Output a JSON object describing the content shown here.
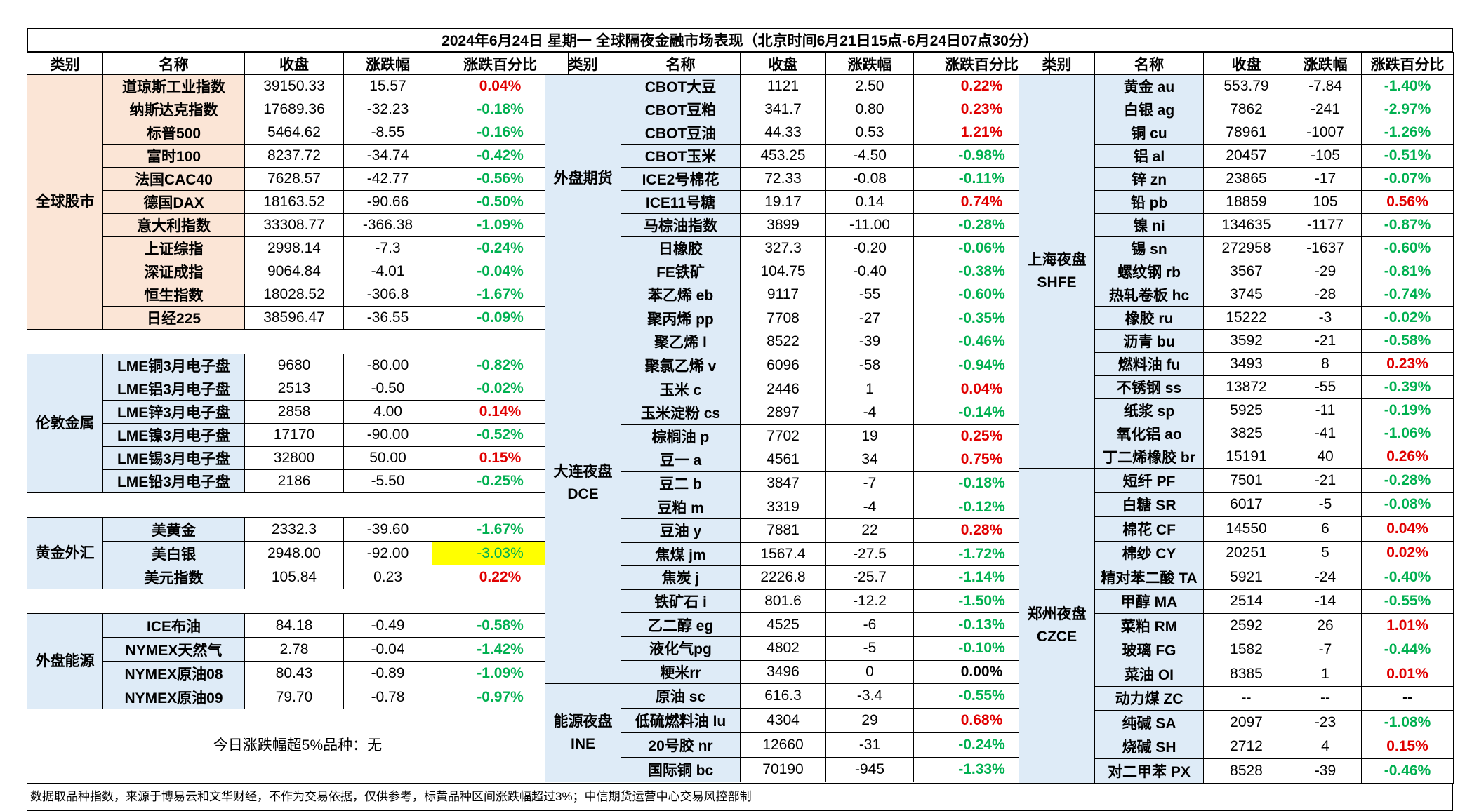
{
  "title": "2024年6月24日 星期一 全球隔夜金融市场表现（北京时间6月21日15点-6月24日07点30分）",
  "headers": [
    "类别",
    "名称",
    "收盘",
    "涨跌幅",
    "涨跌百分比"
  ],
  "colors": {
    "up": "#E00000",
    "down": "#00B050",
    "highlight": "#FFFF00",
    "category_orange": "#FBE5D6",
    "category_blue": "#DEEBF7"
  },
  "left": {
    "groups": [
      {
        "category": "全球股市",
        "rows": [
          {
            "name": "道琼斯工业指数",
            "close": "39150.33",
            "change": "15.57",
            "pct": "0.04%"
          },
          {
            "name": "纳斯达克指数",
            "close": "17689.36",
            "change": "-32.23",
            "pct": "-0.18%"
          },
          {
            "name": "标普500",
            "close": "5464.62",
            "change": "-8.55",
            "pct": "-0.16%"
          },
          {
            "name": "富时100",
            "close": "8237.72",
            "change": "-34.74",
            "pct": "-0.42%"
          },
          {
            "name": "法国CAC40",
            "close": "7628.57",
            "change": "-42.77",
            "pct": "-0.56%"
          },
          {
            "name": "德国DAX",
            "close": "18163.52",
            "change": "-90.66",
            "pct": "-0.50%"
          },
          {
            "name": "意大利指数",
            "close": "33308.77",
            "change": "-366.38",
            "pct": "-1.09%"
          },
          {
            "name": "上证综指",
            "close": "2998.14",
            "change": "-7.3",
            "pct": "-0.24%"
          },
          {
            "name": "深证成指",
            "close": "9064.84",
            "change": "-4.01",
            "pct": "-0.04%"
          },
          {
            "name": "恒生指数",
            "close": "18028.52",
            "change": "-306.8",
            "pct": "-1.67%"
          },
          {
            "name": "日经225",
            "close": "38596.47",
            "change": "-36.55",
            "pct": "-0.09%"
          }
        ]
      },
      {
        "category": "伦敦金属",
        "rows": [
          {
            "name": "LME铜3月电子盘",
            "close": "9680",
            "change": "-80.00",
            "pct": "-0.82%"
          },
          {
            "name": "LME铝3月电子盘",
            "close": "2513",
            "change": "-0.50",
            "pct": "-0.02%"
          },
          {
            "name": "LME锌3月电子盘",
            "close": "2858",
            "change": "4.00",
            "pct": "0.14%"
          },
          {
            "name": "LME镍3月电子盘",
            "close": "17170",
            "change": "-90.00",
            "pct": "-0.52%"
          },
          {
            "name": "LME锡3月电子盘",
            "close": "32800",
            "change": "50.00",
            "pct": "0.15%"
          },
          {
            "name": "LME铅3月电子盘",
            "close": "2186",
            "change": "-5.50",
            "pct": "-0.25%"
          }
        ]
      },
      {
        "category": "黄金外汇",
        "rows": [
          {
            "name": "美黄金",
            "close": "2332.3",
            "change": "-39.60",
            "pct": "-1.67%"
          },
          {
            "name": "美白银",
            "close": "2948.00",
            "change": "-92.00",
            "pct": "-3.03%"
          },
          {
            "name": "美元指数",
            "close": "105.84",
            "change": "0.23",
            "pct": "0.22%"
          }
        ]
      },
      {
        "category": "外盘能源",
        "rows": [
          {
            "name": "ICE布油",
            "close": "84.18",
            "change": "-0.49",
            "pct": "-0.58%"
          },
          {
            "name": "NYMEX天然气",
            "close": "2.78",
            "change": "-0.04",
            "pct": "-1.42%"
          },
          {
            "name": "NYMEX原油08",
            "close": "80.43",
            "change": "-0.89",
            "pct": "-1.09%"
          },
          {
            "name": "NYMEX原油09",
            "close": "79.70",
            "change": "-0.78",
            "pct": "-0.97%"
          }
        ]
      }
    ],
    "summary": "今日涨跌幅超5%品种：无"
  },
  "middle": {
    "groups": [
      {
        "category": "外盘期货",
        "rows": [
          {
            "name": "CBOT大豆",
            "close": "1121",
            "change": "2.50",
            "pct": "0.22%"
          },
          {
            "name": "CBOT豆粕",
            "close": "341.7",
            "change": "0.80",
            "pct": "0.23%"
          },
          {
            "name": "CBOT豆油",
            "close": "44.33",
            "change": "0.53",
            "pct": "1.21%"
          },
          {
            "name": "CBOT玉米",
            "close": "453.25",
            "change": "-4.50",
            "pct": "-0.98%"
          },
          {
            "name": "ICE2号棉花",
            "close": "72.33",
            "change": "-0.08",
            "pct": "-0.11%"
          },
          {
            "name": "ICE11号糖",
            "close": "19.17",
            "change": "0.14",
            "pct": "0.74%"
          },
          {
            "name": "马棕油指数",
            "close": "3899",
            "change": "-11.00",
            "pct": "-0.28%"
          },
          {
            "name": "日橡胶",
            "close": "327.3",
            "change": "-0.20",
            "pct": "-0.06%"
          },
          {
            "name": "FE铁矿",
            "close": "104.75",
            "change": "-0.40",
            "pct": "-0.38%"
          }
        ]
      },
      {
        "category": "大连夜盘 DCE",
        "rows": [
          {
            "name": "苯乙烯 eb",
            "close": "9117",
            "change": "-55",
            "pct": "-0.60%"
          },
          {
            "name": "聚丙烯 pp",
            "close": "7708",
            "change": "-27",
            "pct": "-0.35%"
          },
          {
            "name": "聚乙烯 l",
            "close": "8522",
            "change": "-39",
            "pct": "-0.46%"
          },
          {
            "name": "聚氯乙烯 v",
            "close": "6096",
            "change": "-58",
            "pct": "-0.94%"
          },
          {
            "name": "玉米 c",
            "close": "2446",
            "change": "1",
            "pct": "0.04%"
          },
          {
            "name": "玉米淀粉 cs",
            "close": "2897",
            "change": "-4",
            "pct": "-0.14%"
          },
          {
            "name": "棕榈油 p",
            "close": "7702",
            "change": "19",
            "pct": "0.25%"
          },
          {
            "name": "豆一 a",
            "close": "4561",
            "change": "34",
            "pct": "0.75%"
          },
          {
            "name": "豆二 b",
            "close": "3847",
            "change": "-7",
            "pct": "-0.18%"
          },
          {
            "name": "豆粕 m",
            "close": "3319",
            "change": "-4",
            "pct": "-0.12%"
          },
          {
            "name": "豆油 y",
            "close": "7881",
            "change": "22",
            "pct": "0.28%"
          },
          {
            "name": "焦煤 jm",
            "close": "1567.4",
            "change": "-27.5",
            "pct": "-1.72%"
          },
          {
            "name": "焦炭 j",
            "close": "2226.8",
            "change": "-25.7",
            "pct": "-1.14%"
          },
          {
            "name": "铁矿石 i",
            "close": "801.6",
            "change": "-12.2",
            "pct": "-1.50%"
          },
          {
            "name": "乙二醇 eg",
            "close": "4525",
            "change": "-6",
            "pct": "-0.13%"
          },
          {
            "name": "液化气pg",
            "close": "4802",
            "change": "-5",
            "pct": "-0.10%"
          },
          {
            "name": "粳米rr",
            "close": "3496",
            "change": "0",
            "pct": "0.00%"
          }
        ]
      },
      {
        "category": "能源夜盘 INE",
        "rows": [
          {
            "name": "原油 sc",
            "close": "616.3",
            "change": "-3.4",
            "pct": "-0.55%"
          },
          {
            "name": "低硫燃料油 lu",
            "close": "4304",
            "change": "29",
            "pct": "0.68%"
          },
          {
            "name": "20号胶 nr",
            "close": "12660",
            "change": "-31",
            "pct": "-0.24%"
          },
          {
            "name": "国际铜 bc",
            "close": "70190",
            "change": "-945",
            "pct": "-1.33%"
          }
        ]
      }
    ]
  },
  "right": {
    "groups": [
      {
        "category": "上海夜盘 SHFE",
        "rows": [
          {
            "name": "黄金 au",
            "close": "553.79",
            "change": "-7.84",
            "pct": "-1.40%"
          },
          {
            "name": "白银 ag",
            "close": "7862",
            "change": "-241",
            "pct": "-2.97%"
          },
          {
            "name": "铜 cu",
            "close": "78961",
            "change": "-1007",
            "pct": "-1.26%"
          },
          {
            "name": "铝 al",
            "close": "20457",
            "change": "-105",
            "pct": "-0.51%"
          },
          {
            "name": "锌 zn",
            "close": "23865",
            "change": "-17",
            "pct": "-0.07%"
          },
          {
            "name": "铅 pb",
            "close": "18859",
            "change": "105",
            "pct": "0.56%"
          },
          {
            "name": "镍 ni",
            "close": "134635",
            "change": "-1177",
            "pct": "-0.87%"
          },
          {
            "name": "锡 sn",
            "close": "272958",
            "change": "-1637",
            "pct": "-0.60%"
          },
          {
            "name": "螺纹钢 rb",
            "close": "3567",
            "change": "-29",
            "pct": "-0.81%"
          },
          {
            "name": "热轧卷板 hc",
            "close": "3745",
            "change": "-28",
            "pct": "-0.74%"
          },
          {
            "name": "橡胶 ru",
            "close": "15222",
            "change": "-3",
            "pct": "-0.02%"
          },
          {
            "name": "沥青 bu",
            "close": "3592",
            "change": "-21",
            "pct": "-0.58%"
          },
          {
            "name": "燃料油 fu",
            "close": "3493",
            "change": "8",
            "pct": "0.23%"
          },
          {
            "name": "不锈钢 ss",
            "close": "13872",
            "change": "-55",
            "pct": "-0.39%"
          },
          {
            "name": "纸浆 sp",
            "close": "5925",
            "change": "-11",
            "pct": "-0.19%"
          },
          {
            "name": "氧化铝 ao",
            "close": "3825",
            "change": "-41",
            "pct": "-1.06%"
          },
          {
            "name": "丁二烯橡胶 br",
            "close": "15191",
            "change": "40",
            "pct": "0.26%"
          }
        ]
      },
      {
        "category": "郑州夜盘 CZCE",
        "rows": [
          {
            "name": "短纤 PF",
            "close": "7501",
            "change": "-21",
            "pct": "-0.28%"
          },
          {
            "name": "白糖 SR",
            "close": "6017",
            "change": "-5",
            "pct": "-0.08%"
          },
          {
            "name": "棉花 CF",
            "close": "14550",
            "change": "6",
            "pct": "0.04%"
          },
          {
            "name": "棉纱 CY",
            "close": "20251",
            "change": "5",
            "pct": "0.02%"
          },
          {
            "name": "精对苯二酸 TA",
            "close": "5921",
            "change": "-24",
            "pct": "-0.40%"
          },
          {
            "name": "甲醇 MA",
            "close": "2514",
            "change": "-14",
            "pct": "-0.55%"
          },
          {
            "name": "菜粕 RM",
            "close": "2592",
            "change": "26",
            "pct": "1.01%"
          },
          {
            "name": "玻璃 FG",
            "close": "1582",
            "change": "-7",
            "pct": "-0.44%"
          },
          {
            "name": "菜油 OI",
            "close": "8385",
            "change": "1",
            "pct": "0.01%"
          },
          {
            "name": "动力煤 ZC",
            "close": "--",
            "change": "--",
            "pct": "--"
          },
          {
            "name": "纯碱 SA",
            "close": "2097",
            "change": "-23",
            "pct": "-1.08%"
          },
          {
            "name": "烧碱 SH",
            "close": "2712",
            "change": "4",
            "pct": "0.15%"
          },
          {
            "name": "对二甲苯 PX",
            "close": "8528",
            "change": "-39",
            "pct": "-0.46%"
          }
        ]
      }
    ]
  },
  "footnote": "数据取品种指数，来源于博易云和文华财经，不作为交易依据，仅供参考，标黄品种区间涨跌幅超过3%；中信期货运营中心交易风控部制"
}
